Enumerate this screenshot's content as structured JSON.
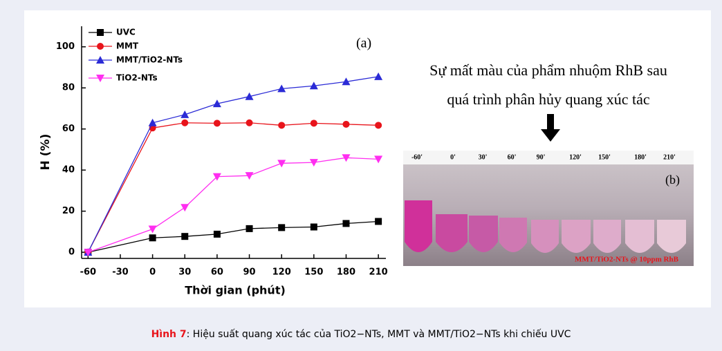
{
  "chart_data": {
    "type": "line",
    "label": "(a)",
    "x_label": "Thời gian (phút)",
    "y_label": "H (%)",
    "x": [
      -60,
      0,
      30,
      60,
      90,
      120,
      150,
      180,
      210
    ],
    "series": [
      {
        "name": "UVC",
        "color": "#000000",
        "marker": "square",
        "values": [
          0,
          7,
          7.7,
          8.8,
          11.5,
          12,
          12.3,
          14,
          15
        ]
      },
      {
        "name": "MMT",
        "color": "#e8141b",
        "marker": "circle",
        "values": [
          0,
          60.5,
          63,
          62.8,
          63,
          61.8,
          62.8,
          62.3,
          61.8
        ]
      },
      {
        "name": "MMT/TiO2-NTs",
        "color": "#2b2bd6",
        "marker": "triangle-up",
        "values": [
          0,
          63,
          67,
          72.3,
          75.8,
          79.6,
          81,
          83,
          85.5
        ]
      },
      {
        "name": "TiO2-NTs",
        "color": "#ff2ef0",
        "marker": "triangle-down",
        "values": [
          0,
          11.3,
          21.8,
          36.8,
          37.3,
          43.3,
          43.7,
          46,
          45.3
        ]
      }
    ],
    "xlim": [
      -66,
      217
    ],
    "xticks": [
      -60,
      -30,
      0,
      30,
      60,
      90,
      120,
      150,
      180,
      210
    ],
    "ylim": [
      -3,
      110
    ],
    "yticks": [
      0,
      20,
      40,
      60,
      80,
      100
    ],
    "legend": "upper-left"
  },
  "photo": {
    "heading": [
      "Sự mất màu của phẩm nhuộm RhB sau",
      "quá trình phân hủy quang xúc tác"
    ],
    "label": "(b)",
    "times": [
      "-60'",
      "0'",
      "30'",
      "60'",
      "90'",
      "120'",
      "150'",
      "180'",
      "210'"
    ],
    "note": "MMT/TiO2-NTs @ 10ppm RhB"
  },
  "caption": {
    "label": "Hình 7",
    "text": ": Hiệu suất quang xúc tác của TiO2−NTs, MMT và MMT/TiO2−NTs khi chiếu UVC"
  }
}
